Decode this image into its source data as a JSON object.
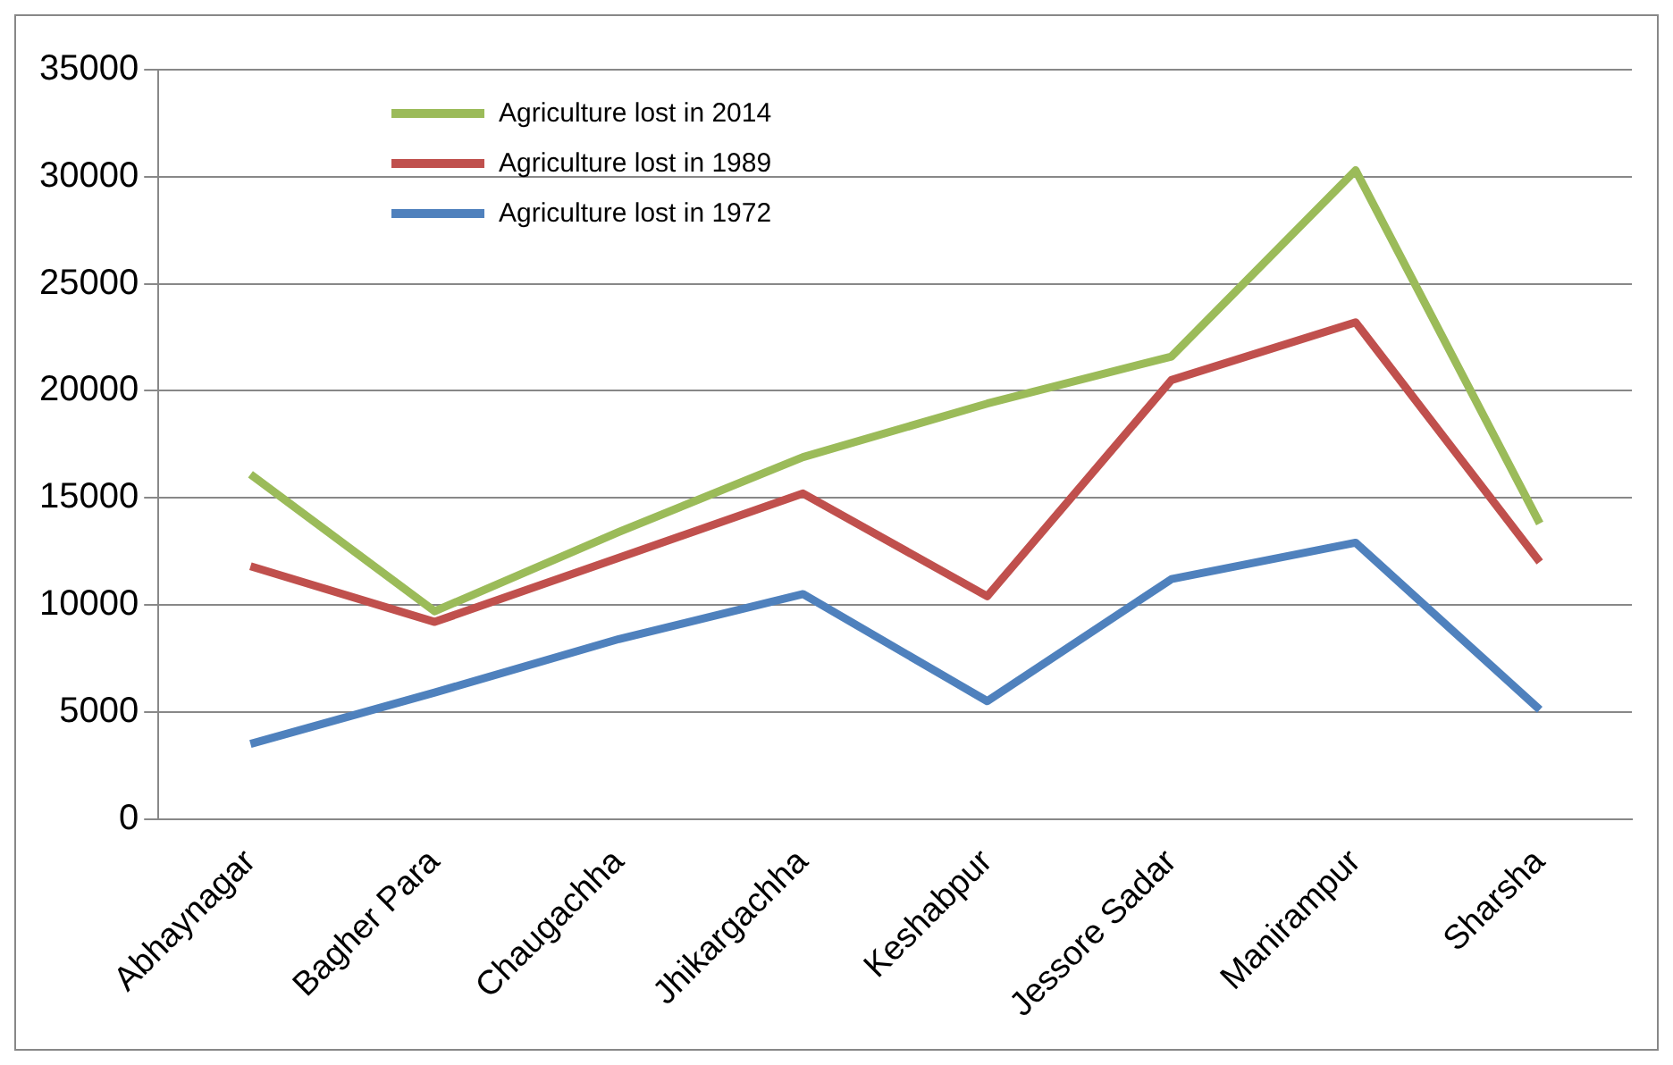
{
  "chart_data": {
    "type": "line",
    "categories": [
      "Abhaynagar",
      "Bagher Para",
      "Chaugachha",
      "Jhikargachha",
      "Keshabpur",
      "Jessore Sadar",
      "Manirampur",
      "Sharsha"
    ],
    "series": [
      {
        "name": "Agriculture lost in 2014",
        "color": "#9bbb59",
        "values": [
          16100,
          9700,
          13400,
          16900,
          19400,
          21600,
          30300,
          13800
        ]
      },
      {
        "name": "Agriculture lost in 1989",
        "color": "#c0504d",
        "values": [
          11800,
          9200,
          12200,
          15200,
          10400,
          20500,
          23200,
          12000
        ]
      },
      {
        "name": "Agriculture lost in 1972",
        "color": "#4f81bd",
        "values": [
          3500,
          5900,
          8400,
          10500,
          5500,
          11200,
          12900,
          5100
        ]
      }
    ],
    "ylim": [
      0,
      35000
    ],
    "yticks": [
      0,
      5000,
      10000,
      15000,
      20000,
      25000,
      30000,
      35000
    ],
    "grid": "y",
    "legend": "top left",
    "marker": "none",
    "line_style": "solid"
  }
}
